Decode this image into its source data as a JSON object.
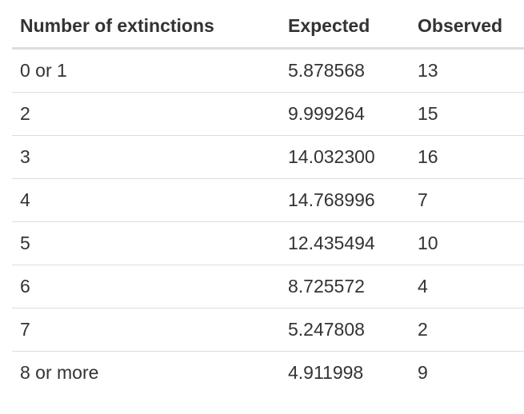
{
  "table": {
    "headers": [
      "Number of extinctions",
      "Expected",
      "Observed"
    ],
    "rows": [
      [
        "0 or 1",
        "5.878568",
        "13"
      ],
      [
        "2",
        "9.999264",
        "15"
      ],
      [
        "3",
        "14.032300",
        "16"
      ],
      [
        "4",
        "14.768996",
        "7"
      ],
      [
        "5",
        "12.435494",
        "10"
      ],
      [
        "6",
        "8.725572",
        "4"
      ],
      [
        "7",
        "5.247808",
        "2"
      ],
      [
        "8 or more",
        "4.911998",
        "9"
      ]
    ]
  }
}
